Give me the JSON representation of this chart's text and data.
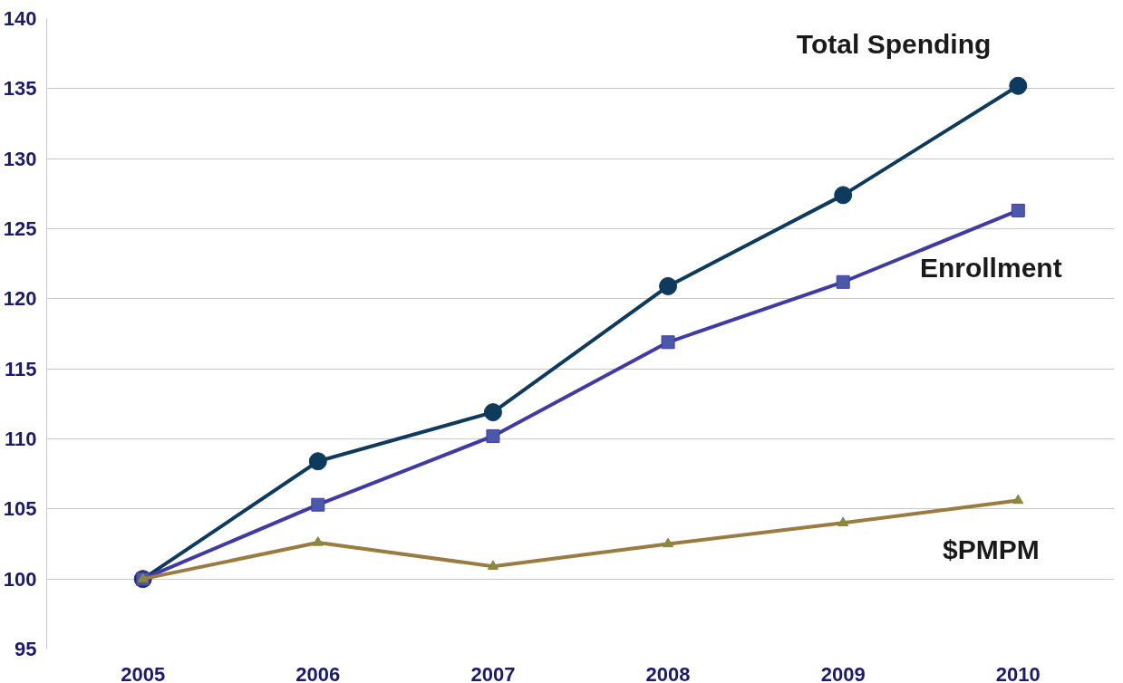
{
  "chart_data": {
    "type": "line",
    "categories": [
      "2005",
      "2006",
      "2007",
      "2008",
      "2009",
      "2010"
    ],
    "series": [
      {
        "name": "Total Spending",
        "color": "#0e3a5e",
        "marker": "circle",
        "values": [
          100,
          108.4,
          111.9,
          120.9,
          127.4,
          135.2
        ]
      },
      {
        "name": "Enrollment",
        "color": "#3f3aa6",
        "marker": "square",
        "values": [
          100,
          105.3,
          110.2,
          116.9,
          121.2,
          126.3
        ]
      },
      {
        "name": "$PMPM",
        "color": "#9a7b40",
        "marker": "triangle",
        "values": [
          100,
          102.6,
          100.9,
          102.5,
          104.0,
          105.6
        ]
      }
    ],
    "ylim": [
      95,
      140
    ],
    "yticks": [
      95,
      100,
      105,
      110,
      115,
      120,
      125,
      130,
      135,
      140
    ],
    "grid": "y",
    "legend": false
  }
}
